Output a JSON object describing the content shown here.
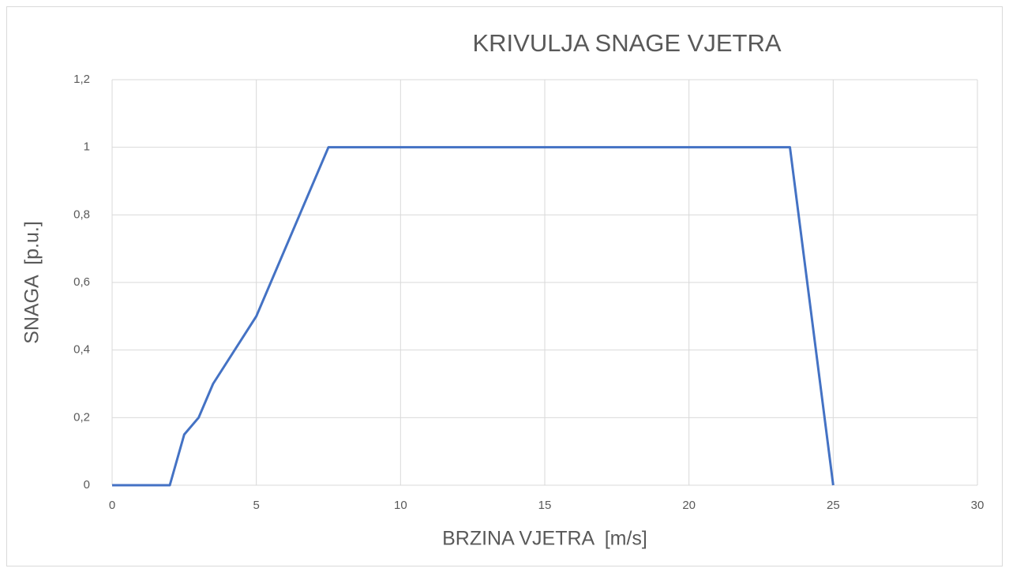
{
  "chart_data": {
    "type": "line",
    "title": "KRIVULJA SNAGE VJETRA",
    "x_label": "BRZINA VJETRA  [m/s]",
    "y_label": "SNAGA  [p.u.]",
    "x": [
      0,
      2,
      2.5,
      3,
      3.5,
      5,
      7.5,
      23.5,
      25
    ],
    "values": [
      0,
      0,
      0.15,
      0.2,
      0.3,
      0.5,
      1,
      1,
      0
    ],
    "color": "#4472c4",
    "xlim": [
      0,
      30
    ],
    "xticks": [
      0,
      5,
      10,
      15,
      20,
      25,
      30
    ],
    "ylim": [
      0,
      1.2
    ],
    "yticks": [
      0,
      {
        "value": 0.2,
        "label": "0,2"
      },
      {
        "value": 0.4,
        "label": "0,4"
      },
      {
        "value": 0.6,
        "label": "0,6"
      },
      {
        "value": 0.8,
        "label": "0,8"
      },
      1,
      {
        "value": 1.2,
        "label": "1,2"
      }
    ],
    "grid": true
  }
}
